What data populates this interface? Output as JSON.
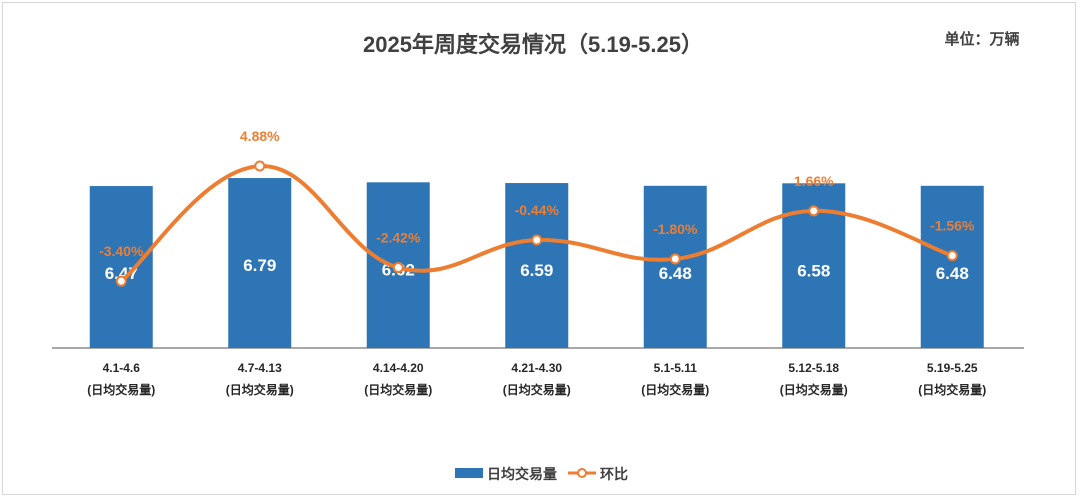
{
  "chart_data": {
    "type": "bar",
    "title": "2025年周度交易情况（5.19-5.25）",
    "unit_label": "单位：万辆",
    "categories": [
      "4.1-4.6",
      "4.7-4.13",
      "4.14-4.20",
      "4.21-4.30",
      "5.1-5.11",
      "5.12-5.18",
      "5.19-5.25"
    ],
    "category_sublabel": "(日均交易量)",
    "series": [
      {
        "name": "日均交易量",
        "type": "bar",
        "color": "#2E75B6",
        "axis": "left",
        "values": [
          6.47,
          6.79,
          6.62,
          6.59,
          6.48,
          6.58,
          6.48
        ]
      },
      {
        "name": "环比",
        "type": "line",
        "color": "#ED7D31",
        "axis": "right",
        "smooth": true,
        "marker": "circle",
        "values": [
          -3.4,
          4.88,
          -2.42,
          -0.44,
          -1.8,
          1.66,
          -1.56
        ],
        "labels": [
          "-3.40%",
          "4.88%",
          "-2.42%",
          "-0.44%",
          "-1.80%",
          "1.66%",
          "-1.56%"
        ]
      }
    ],
    "legend_position": "bottom",
    "grid": false
  }
}
